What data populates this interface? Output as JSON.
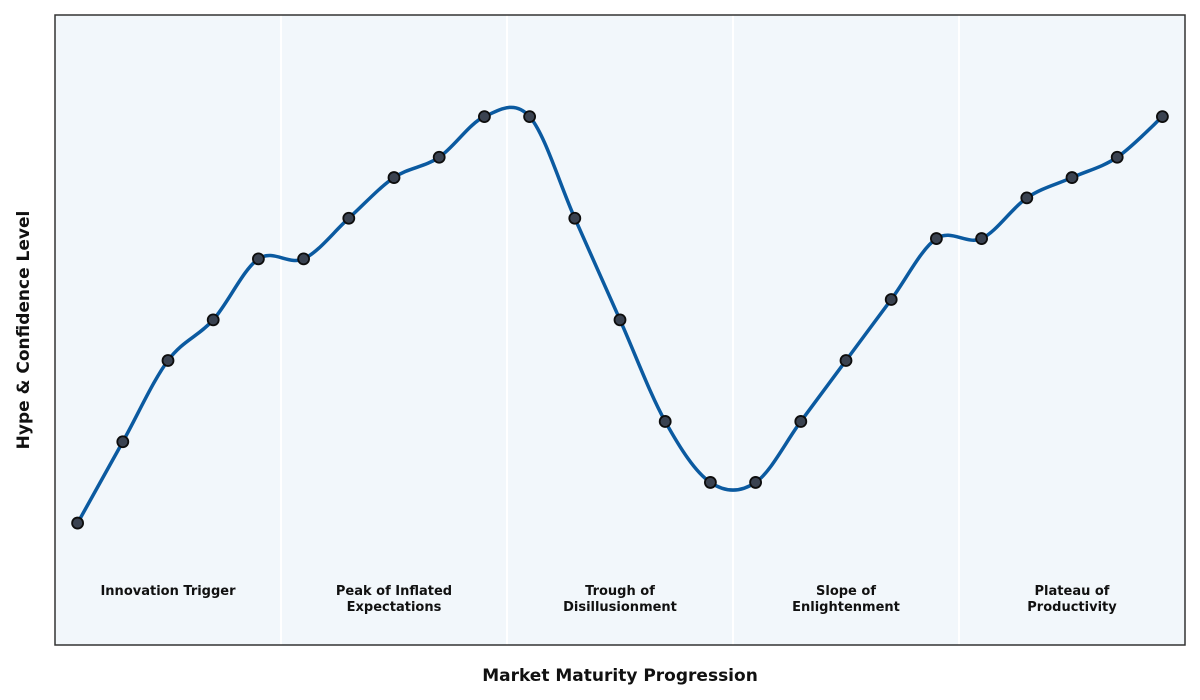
{
  "chart_data": {
    "type": "line",
    "title": "",
    "xlabel": "Market Maturity Progression",
    "ylabel": "Hype & Confidence Level",
    "grid": false,
    "legend": "none",
    "xlim": [
      0,
      25
    ],
    "ylim": [
      0,
      15.5
    ],
    "x": [
      0.5,
      1.5,
      2.5,
      3.5,
      4.5,
      5.5,
      6.5,
      7.5,
      8.5,
      9.5,
      10.5,
      11.5,
      12.5,
      13.5,
      14.5,
      15.5,
      16.5,
      17.5,
      18.5,
      19.5,
      20.5,
      21.5,
      22.5,
      23.5,
      24.5
    ],
    "series": [
      {
        "values": [
          3.0,
          5.0,
          7.0,
          8.0,
          9.5,
          9.5,
          10.5,
          11.5,
          12.0,
          13.0,
          13.0,
          10.5,
          8.0,
          5.5,
          4.0,
          4.0,
          5.5,
          7.0,
          8.5,
          10.0,
          10.0,
          11.0,
          11.5,
          12.0,
          13.0
        ]
      }
    ],
    "phases": [
      {
        "label": "Innovation Trigger",
        "start": 0,
        "end": 5
      },
      {
        "label": "Peak of Inflated\nExpectations",
        "start": 5,
        "end": 10
      },
      {
        "label": "Trough of\nDisillusionment",
        "start": 10,
        "end": 15
      },
      {
        "label": "Slope of\nEnlightenment",
        "start": 15,
        "end": 20
      },
      {
        "label": "Plateau of\nProductivity",
        "start": 20,
        "end": 25
      }
    ]
  },
  "colors": {
    "line": "#0b5aa0",
    "marker_fill": "#3a4250",
    "marker_edge": "#0d0d0d",
    "plot_background": "#f2f7fb",
    "phase_divider": "#ffffff",
    "frame": "#333333"
  }
}
